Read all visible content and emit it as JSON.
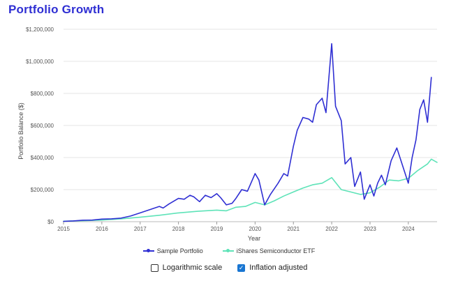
{
  "title": "Portfolio Growth",
  "controls": {
    "log_scale_label": "Logarithmic scale",
    "log_scale_checked": false,
    "inflation_label": "Inflation adjusted",
    "inflation_checked": true,
    "check_glyph": "✓"
  },
  "colors": {
    "title": "#2f2fd3",
    "series_portfolio": "#2f2fd3",
    "series_etf": "#5ee3b8",
    "grid": "#e6e6e6",
    "checkbox_checked": "#1976d2"
  },
  "chart_data": {
    "type": "line",
    "title": "Portfolio Growth",
    "xlabel": "Year",
    "ylabel": "Portfolio Balance ($)",
    "xlim": [
      2015,
      2024.75
    ],
    "ylim": [
      0,
      1200000
    ],
    "x_ticks": [
      "2015",
      "2016",
      "2017",
      "2018",
      "2019",
      "2020",
      "2021",
      "2022",
      "2023",
      "2024"
    ],
    "y_ticks": [
      "$0",
      "$200,000",
      "$400,000",
      "$600,000",
      "$800,000",
      "$1,000,000",
      "$1,200,000"
    ],
    "grid": "horizontal",
    "legend_position": "bottom",
    "series": [
      {
        "name": "Sample Portfolio",
        "x": [
          2015,
          2015.25,
          2015.5,
          2015.75,
          2016,
          2016.25,
          2016.5,
          2016.75,
          2017,
          2017.25,
          2017.5,
          2017.6,
          2017.75,
          2018,
          2018.15,
          2018.3,
          2018.4,
          2018.55,
          2018.7,
          2018.85,
          2019,
          2019.1,
          2019.25,
          2019.4,
          2019.5,
          2019.65,
          2019.8,
          2020,
          2020.1,
          2020.25,
          2020.4,
          2020.6,
          2020.75,
          2020.85,
          2021,
          2021.1,
          2021.25,
          2021.4,
          2021.5,
          2021.6,
          2021.75,
          2021.85,
          2022,
          2022.1,
          2022.25,
          2022.35,
          2022.5,
          2022.6,
          2022.75,
          2022.85,
          2023,
          2023.1,
          2023.2,
          2023.3,
          2023.4,
          2023.55,
          2023.7,
          2023.85,
          2024,
          2024.1,
          2024.2,
          2024.3,
          2024.4,
          2024.5,
          2024.6
        ],
        "values": [
          2000,
          5000,
          9000,
          10000,
          16000,
          18000,
          22000,
          35000,
          55000,
          75000,
          95000,
          85000,
          110000,
          145000,
          140000,
          165000,
          155000,
          125000,
          165000,
          150000,
          175000,
          150000,
          105000,
          115000,
          145000,
          200000,
          190000,
          300000,
          260000,
          105000,
          170000,
          240000,
          300000,
          285000,
          470000,
          570000,
          650000,
          640000,
          620000,
          730000,
          770000,
          680000,
          1110000,
          720000,
          630000,
          360000,
          400000,
          220000,
          310000,
          140000,
          230000,
          160000,
          240000,
          290000,
          230000,
          380000,
          460000,
          350000,
          240000,
          400000,
          510000,
          700000,
          760000,
          620000,
          900000
        ]
      },
      {
        "name": "iShares Semiconductor ETF",
        "x": [
          2015,
          2015.5,
          2016,
          2016.5,
          2017,
          2017.5,
          2018,
          2018.5,
          2019,
          2019.25,
          2019.5,
          2019.75,
          2020,
          2020.25,
          2020.5,
          2020.75,
          2021,
          2021.25,
          2021.5,
          2021.75,
          2022,
          2022.25,
          2022.5,
          2022.75,
          2023,
          2023.25,
          2023.5,
          2023.75,
          2024,
          2024.25,
          2024.5,
          2024.6,
          2024.75
        ],
        "values": [
          3000,
          6000,
          10000,
          18000,
          28000,
          40000,
          55000,
          65000,
          72000,
          68000,
          90000,
          95000,
          120000,
          105000,
          130000,
          160000,
          185000,
          210000,
          230000,
          240000,
          275000,
          200000,
          185000,
          170000,
          180000,
          215000,
          260000,
          255000,
          270000,
          320000,
          360000,
          390000,
          370000
        ]
      }
    ]
  }
}
